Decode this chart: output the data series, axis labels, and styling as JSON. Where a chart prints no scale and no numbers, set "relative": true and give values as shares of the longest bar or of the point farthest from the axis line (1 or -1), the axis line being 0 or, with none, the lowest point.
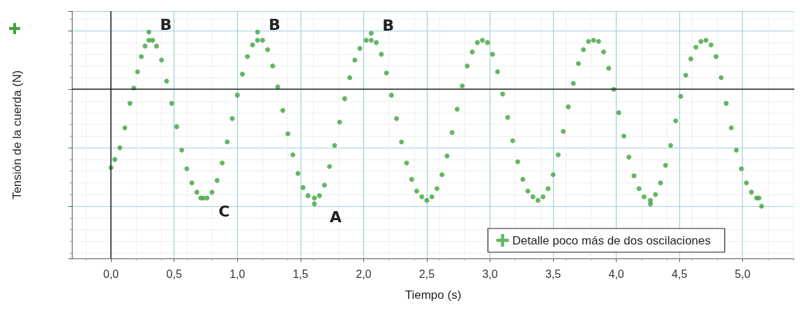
{
  "chart_data": {
    "type": "scatter",
    "relative": true,
    "xlabel": "Tiempo (s)",
    "ylabel": "Tensión de la cuerda (N)",
    "xlim": [
      -0.31,
      5.41
    ],
    "xticks": [
      {
        "value": 0,
        "label": "0,0"
      },
      {
        "value": 0.5,
        "label": "0,5"
      },
      {
        "value": 1,
        "label": "1,0"
      },
      {
        "value": 1.5,
        "label": "1,5"
      },
      {
        "value": 2,
        "label": "2,0"
      },
      {
        "value": 2.5,
        "label": "2,5"
      },
      {
        "value": 3,
        "label": "3,0"
      },
      {
        "value": 3.5,
        "label": "3,5"
      },
      {
        "value": 4,
        "label": "4,0"
      },
      {
        "value": 4.5,
        "label": "4,5"
      },
      {
        "value": 5,
        "label": "5,0"
      }
    ],
    "grid": true,
    "legend": "bottom right",
    "marker": "circle",
    "annotations": [
      {
        "text": "B",
        "x": 0.3,
        "y": 0.49
      },
      {
        "text": "B",
        "x": 1.16,
        "y": 0.49
      },
      {
        "text": "B",
        "x": 2.06,
        "y": 0.48
      },
      {
        "text": "C",
        "x": 0.73,
        "y": -0.93
      },
      {
        "text": "A",
        "x": 1.61,
        "y": -0.98
      }
    ],
    "series": [
      {
        "name": "Detalle poco más de dos oscilaciones",
        "color": "#3da43d",
        "x": [
          0.0,
          0.03,
          0.07,
          0.11,
          0.15,
          0.18,
          0.21,
          0.24,
          0.27,
          0.3,
          0.3,
          0.33,
          0.36,
          0.4,
          0.44,
          0.48,
          0.52,
          0.56,
          0.6,
          0.64,
          0.68,
          0.71,
          0.73,
          0.76,
          0.8,
          0.84,
          0.88,
          0.92,
          0.96,
          1.0,
          1.04,
          1.08,
          1.12,
          1.16,
          1.16,
          1.2,
          1.24,
          1.28,
          1.32,
          1.36,
          1.4,
          1.44,
          1.48,
          1.52,
          1.56,
          1.61,
          1.61,
          1.65,
          1.69,
          1.73,
          1.77,
          1.81,
          1.85,
          1.89,
          1.93,
          1.97,
          2.02,
          2.06,
          2.06,
          2.1,
          2.14,
          2.18,
          2.22,
          2.26,
          2.3,
          2.34,
          2.38,
          2.42,
          2.46,
          2.5,
          2.54,
          2.58,
          2.62,
          2.66,
          2.7,
          2.74,
          2.78,
          2.82,
          2.86,
          2.9,
          2.94,
          2.98,
          3.02,
          3.06,
          3.1,
          3.14,
          3.18,
          3.22,
          3.26,
          3.3,
          3.34,
          3.38,
          3.42,
          3.46,
          3.5,
          3.54,
          3.58,
          3.62,
          3.66,
          3.7,
          3.74,
          3.78,
          3.82,
          3.86,
          3.9,
          3.94,
          3.98,
          4.02,
          4.06,
          4.1,
          4.14,
          4.18,
          4.22,
          4.27,
          4.27,
          4.31,
          4.35,
          4.39,
          4.43,
          4.47,
          4.51,
          4.55,
          4.59,
          4.63,
          4.67,
          4.71,
          4.75,
          4.79,
          4.83,
          4.87,
          4.91,
          4.95,
          4.99,
          5.03,
          5.07,
          5.11,
          5.13,
          5.15
        ],
        "values": [
          -0.67,
          -0.6,
          -0.5,
          -0.33,
          -0.12,
          0.01,
          0.15,
          0.28,
          0.37,
          0.42,
          0.49,
          0.42,
          0.37,
          0.25,
          0.07,
          -0.12,
          -0.32,
          -0.52,
          -0.68,
          -0.8,
          -0.88,
          -0.93,
          -0.93,
          -0.93,
          -0.88,
          -0.78,
          -0.63,
          -0.45,
          -0.25,
          -0.05,
          0.13,
          0.28,
          0.38,
          0.42,
          0.49,
          0.42,
          0.34,
          0.2,
          0.02,
          -0.18,
          -0.38,
          -0.56,
          -0.72,
          -0.84,
          -0.91,
          -0.93,
          -0.98,
          -0.91,
          -0.82,
          -0.66,
          -0.48,
          -0.28,
          -0.08,
          0.1,
          0.25,
          0.35,
          0.42,
          0.42,
          0.48,
          0.4,
          0.3,
          0.14,
          -0.05,
          -0.25,
          -0.45,
          -0.63,
          -0.77,
          -0.87,
          -0.92,
          -0.95,
          -0.92,
          -0.85,
          -0.73,
          -0.57,
          -0.37,
          -0.17,
          0.03,
          0.2,
          0.32,
          0.4,
          0.42,
          0.4,
          0.3,
          0.15,
          -0.04,
          -0.24,
          -0.44,
          -0.62,
          -0.77,
          -0.87,
          -0.92,
          -0.95,
          -0.92,
          -0.85,
          -0.73,
          -0.56,
          -0.36,
          -0.15,
          0.05,
          0.22,
          0.34,
          0.41,
          0.42,
          0.41,
          0.32,
          0.18,
          0.0,
          -0.2,
          -0.4,
          -0.58,
          -0.74,
          -0.85,
          -0.92,
          -0.95,
          -0.98,
          -0.9,
          -0.8,
          -0.65,
          -0.48,
          -0.27,
          -0.06,
          0.12,
          0.26,
          0.36,
          0.41,
          0.42,
          0.38,
          0.28,
          0.1,
          -0.12,
          -0.33,
          -0.52,
          -0.68,
          -0.8,
          -0.88,
          -0.93,
          -0.93,
          -1.0
        ]
      }
    ]
  }
}
